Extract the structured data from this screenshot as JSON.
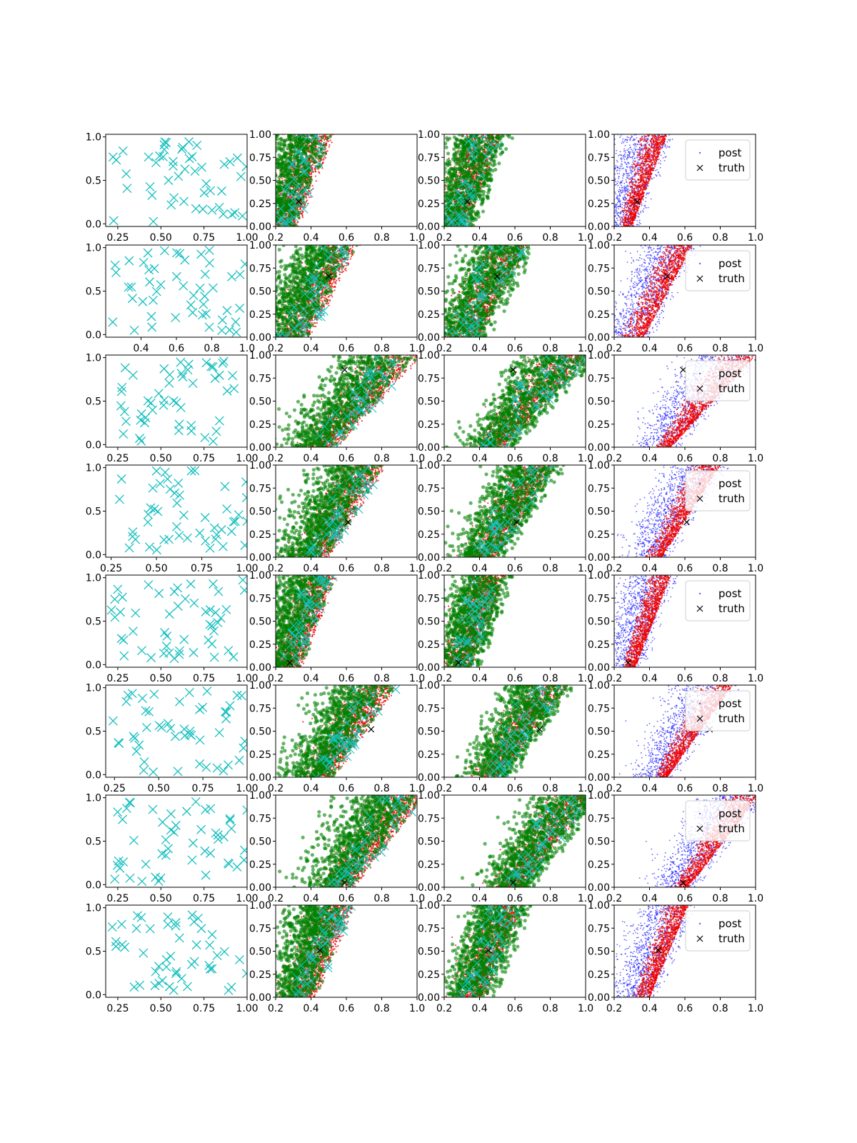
{
  "figure": {
    "rows": 8,
    "columns": 4,
    "legend": {
      "entries": [
        {
          "label": "post",
          "marker": "point",
          "color": "#4a6fe3"
        },
        {
          "label": "truth",
          "marker": "x",
          "color": "#000000"
        }
      ]
    }
  },
  "colors": {
    "cyan_marker": "#17bfbf",
    "green": "#008000",
    "red": "#ee0000",
    "blue": "#1f1fff",
    "black": "#000000"
  },
  "chart_data": {
    "type": "scatter",
    "description_of_layout": "8x4 grid of scatter subplots",
    "y_ticks": [
      "0.0",
      "0.5",
      "1.0"
    ],
    "y_ticks_fine": [
      "0.00",
      "0.25",
      "0.50",
      "0.75",
      "1.00"
    ],
    "x_ticks": [
      "0.2",
      "0.4",
      "0.6",
      "0.8",
      "1.0"
    ],
    "rows": [
      {
        "col1_xlim": [
          0.18,
          1.0
        ],
        "col1_xticks": [
          "0.25",
          "0.50",
          "0.75",
          "1.00"
        ],
        "truth": [
          0.33,
          0.27
        ],
        "band": {
          "ylo": [
            0.2,
            0.32
          ],
          "yhi": [
            0.28,
            0.48
          ]
        },
        "col4_legend": "upper right"
      },
      {
        "col1_xlim": [
          0.2,
          1.0
        ],
        "col1_xticks": [
          "0.4",
          "0.6",
          "0.8",
          "1.0"
        ],
        "truth": [
          0.5,
          0.66
        ],
        "band": {
          "ylo": [
            0.2,
            0.45
          ],
          "yhi": [
            0.35,
            0.62
          ]
        },
        "col4_legend": "right"
      },
      {
        "col1_xlim": [
          0.18,
          1.0
        ],
        "col1_xticks": [
          "0.25",
          "0.50",
          "0.75",
          "1.00"
        ],
        "truth": [
          0.59,
          0.84
        ],
        "band": {
          "ylo": [
            0.4,
            0.72
          ],
          "yhi": [
            0.5,
            0.98
          ]
        },
        "col4_legend": "upper center"
      },
      {
        "col1_xlim": [
          0.22,
          1.0
        ],
        "col1_xticks": [
          "0.25",
          "0.50",
          "0.75",
          "1.00"
        ],
        "truth": [
          0.61,
          0.38
        ],
        "band": {
          "ylo": [
            0.35,
            0.6
          ],
          "yhi": [
            0.45,
            0.78
          ]
        },
        "col4_legend": "upper right"
      },
      {
        "col1_xlim": [
          0.18,
          1.0
        ],
        "col1_xticks": [
          "0.25",
          "0.50",
          "0.75",
          "1.00"
        ],
        "truth": [
          0.28,
          0.05
        ],
        "band": {
          "ylo": [
            0.22,
            0.36
          ],
          "yhi": [
            0.3,
            0.5
          ]
        },
        "col4_legend": "upper right"
      },
      {
        "col1_xlim": [
          0.2,
          1.0
        ],
        "col1_xticks": [
          "0.25",
          "0.50",
          "0.75",
          "1.00"
        ],
        "truth": [
          0.74,
          0.52
        ],
        "band": {
          "ylo": [
            0.4,
            0.65
          ],
          "yhi": [
            0.48,
            0.85
          ]
        },
        "col4_legend": "upper right"
      },
      {
        "col1_xlim": [
          0.18,
          1.0
        ],
        "col1_xticks": [
          "0.25",
          "0.50",
          "0.75",
          "1.00"
        ],
        "truth": [
          0.59,
          0.05
        ],
        "band": {
          "ylo": [
            0.5,
            0.8
          ],
          "yhi": [
            0.6,
            1.0
          ]
        },
        "col4_legend": "upper right"
      },
      {
        "col1_xlim": [
          0.18,
          1.0
        ],
        "col1_xticks": [
          "0.25",
          "0.50",
          "0.75",
          "1.00"
        ],
        "truth": [
          0.45,
          0.51
        ],
        "band": {
          "ylo": [
            0.28,
            0.45
          ],
          "yhi": [
            0.38,
            0.6
          ]
        },
        "col4_legend": "upper right"
      }
    ]
  }
}
